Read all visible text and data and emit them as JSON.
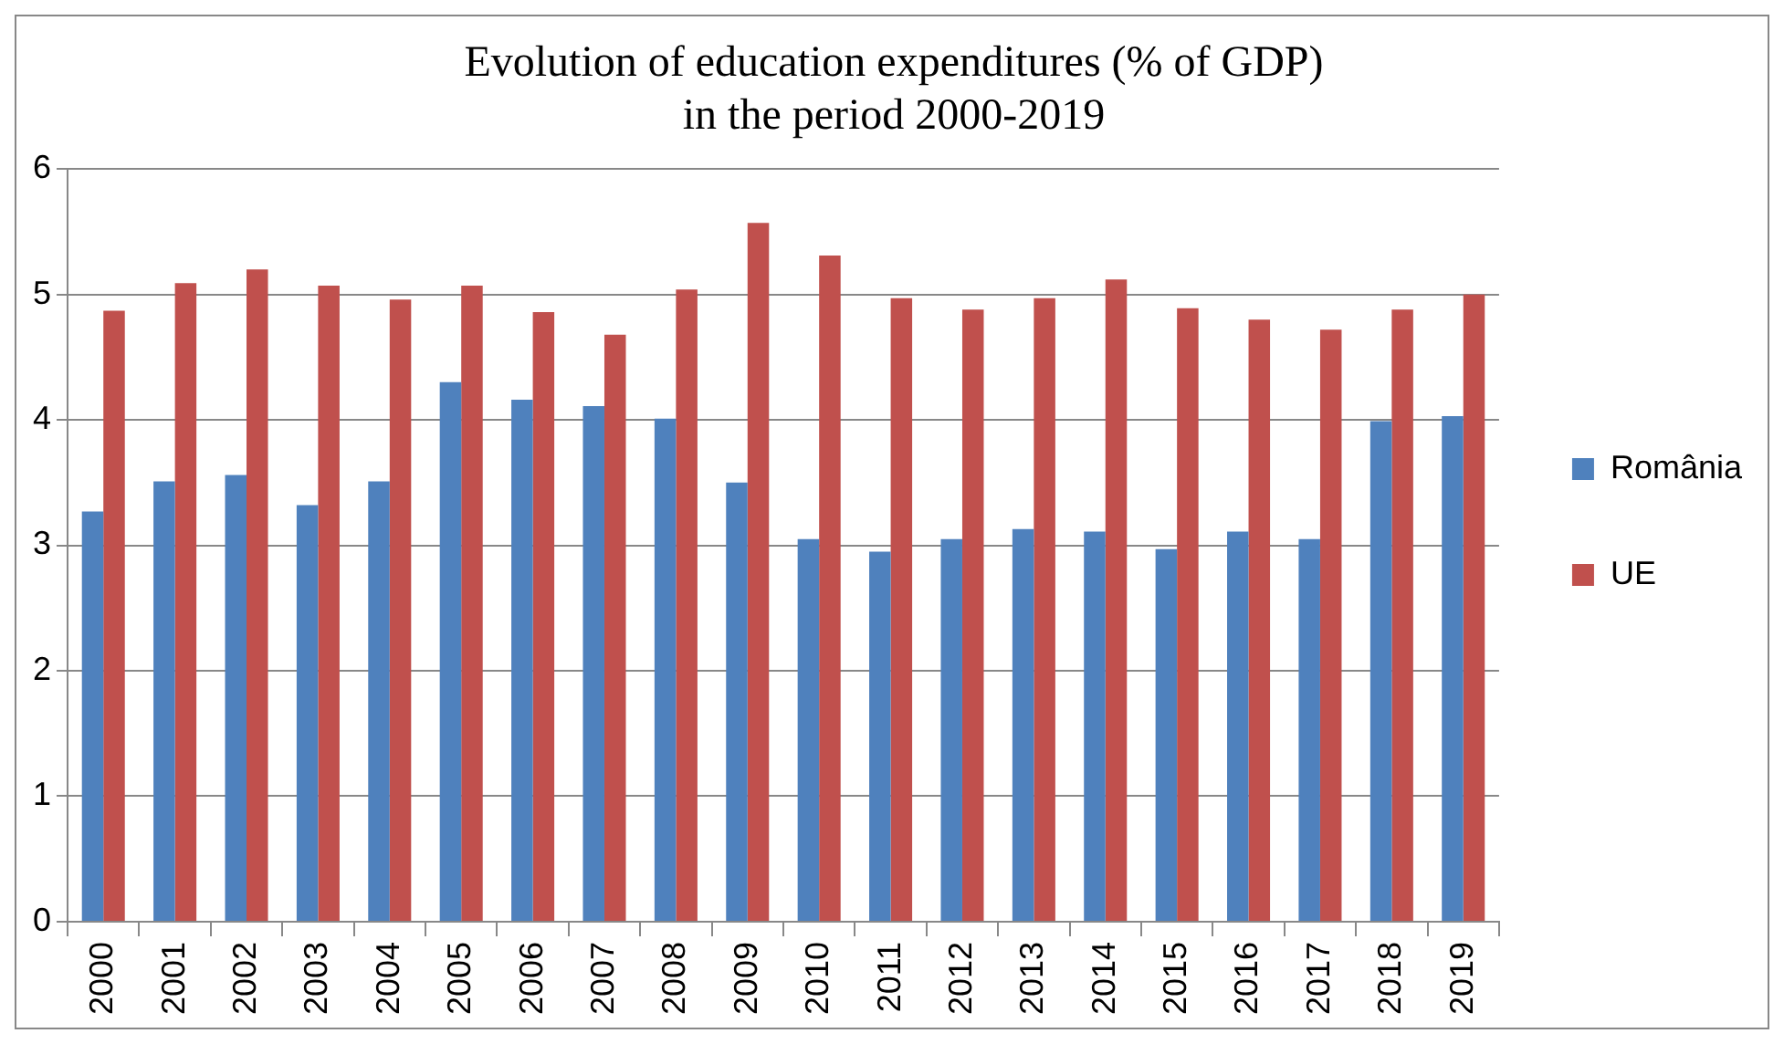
{
  "chart_data": {
    "type": "bar",
    "title": "Evolution of education expenditures (% of GDP)",
    "subtitle": "in the period 2000-2019",
    "categories": [
      "2000",
      "2001",
      "2002",
      "2003",
      "2004",
      "2005",
      "2006",
      "2007",
      "2008",
      "2009",
      "2010",
      "2011",
      "2012",
      "2013",
      "2014",
      "2015",
      "2016",
      "2017",
      "2018",
      "2019"
    ],
    "series": [
      {
        "name": "România",
        "color": "#4f81bd",
        "values": [
          3.27,
          3.51,
          3.56,
          3.32,
          3.51,
          4.3,
          4.16,
          4.11,
          4.01,
          3.5,
          3.05,
          2.95,
          3.05,
          3.13,
          3.11,
          2.97,
          3.11,
          3.05,
          3.99,
          4.03
        ]
      },
      {
        "name": "UE",
        "color": "#c0504d",
        "values": [
          4.87,
          5.09,
          5.2,
          5.07,
          4.96,
          5.07,
          4.86,
          4.68,
          5.04,
          5.57,
          5.31,
          4.97,
          4.88,
          4.97,
          5.12,
          4.89,
          4.8,
          4.72,
          4.88,
          5.0
        ]
      }
    ],
    "ylim": [
      0,
      6
    ],
    "yticks": [
      0,
      1,
      2,
      3,
      4,
      5,
      6
    ],
    "grid": "y",
    "legend": "right"
  }
}
